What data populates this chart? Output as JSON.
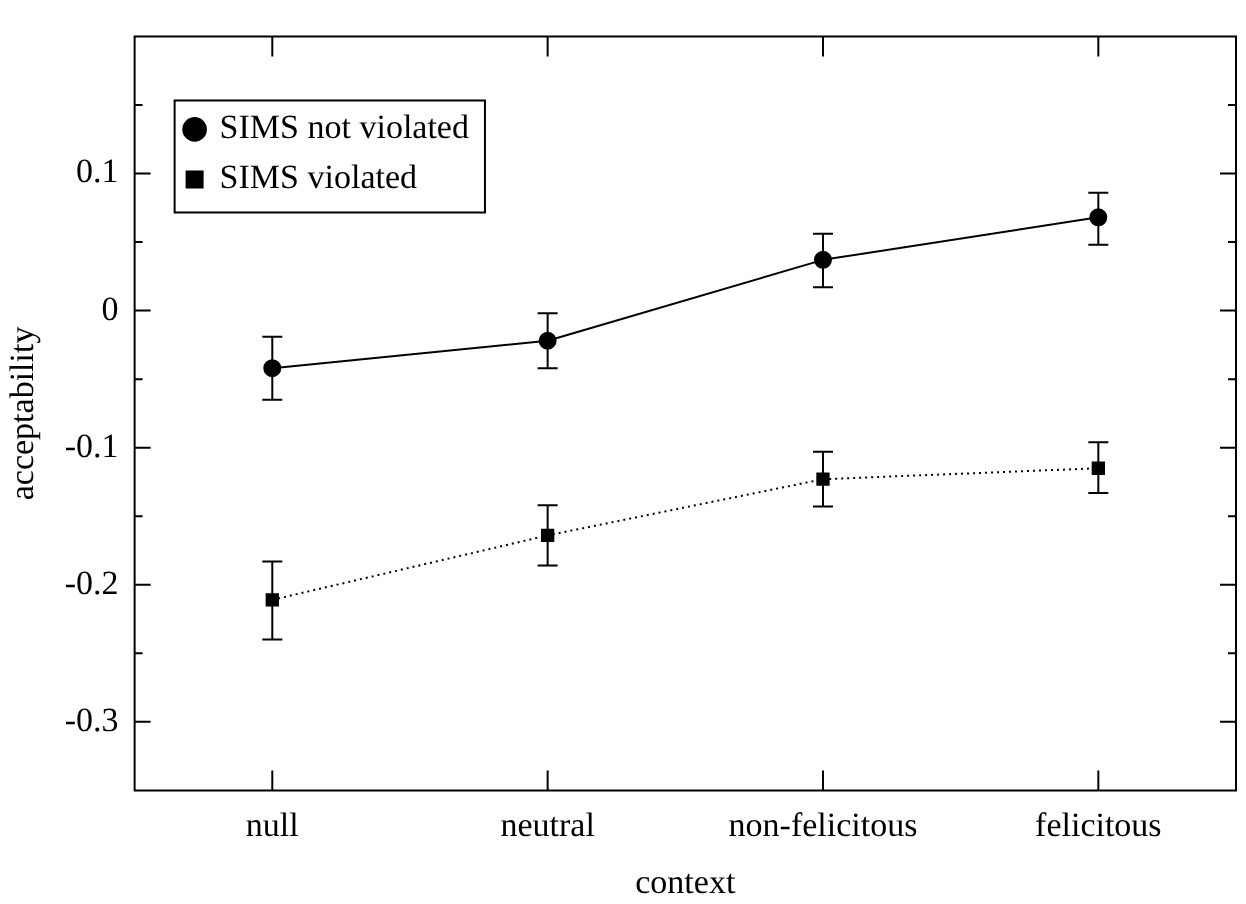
{
  "chart_data": {
    "type": "line",
    "xlabel": "context",
    "ylabel": "acceptability",
    "categories": [
      "null",
      "neutral",
      "non-felicitous",
      "felicitous"
    ],
    "series": [
      {
        "name": "SIMS not violated",
        "color": "#000000",
        "marker": "circle",
        "line_style": "solid",
        "values": [
          -0.042,
          -0.022,
          0.037,
          0.068
        ],
        "errors": [
          [
            -0.065,
            -0.019
          ],
          [
            -0.042,
            -0.002
          ],
          [
            0.017,
            0.056
          ],
          [
            0.048,
            0.086
          ]
        ]
      },
      {
        "name": "SIMS violated",
        "color": "#000000",
        "marker": "square",
        "line_style": "dotted",
        "values": [
          -0.211,
          -0.164,
          -0.123,
          -0.115
        ],
        "errors": [
          [
            -0.24,
            -0.183
          ],
          [
            -0.186,
            -0.142
          ],
          [
            -0.143,
            -0.103
          ],
          [
            -0.133,
            -0.096
          ]
        ]
      }
    ],
    "ylim": [
      -0.35,
      0.2
    ],
    "yticks": [
      {
        "value": 0.15,
        "label": null
      },
      0.1,
      {
        "value": 0.05,
        "label": null
      },
      0,
      {
        "value": -0.05,
        "label": null
      },
      -0.1,
      {
        "value": -0.15,
        "label": null
      },
      -0.2,
      {
        "value": -0.25,
        "label": null
      },
      -0.3
    ],
    "grid": false,
    "legend": "top left"
  }
}
